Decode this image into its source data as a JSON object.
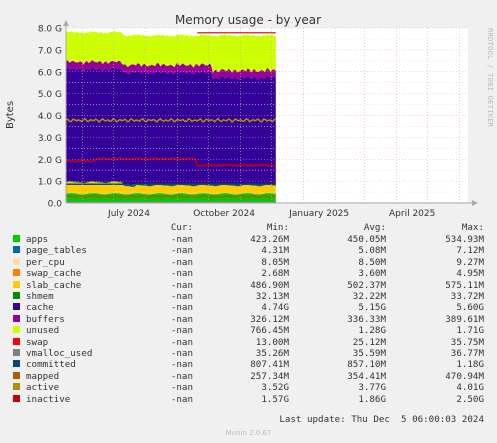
{
  "chart_data": {
    "type": "area",
    "title": "Memory usage - by year",
    "ylabel": "Bytes",
    "xlabel": "",
    "ylim": [
      0,
      8.0
    ],
    "y_unit": "G",
    "y_ticks": [
      "0.0",
      "1.0 G",
      "2.0 G",
      "3.0 G",
      "4.0 G",
      "5.0 G",
      "6.0 G",
      "7.0 G",
      "8.0 G"
    ],
    "x_ticks": [
      "July 2024",
      "October 2024",
      "January 2025",
      "April 2025"
    ],
    "x_range": [
      "2024-05-16",
      "2025-06-09"
    ],
    "grid": true,
    "stacked": true,
    "series": [
      {
        "name": "apps",
        "color": "#00cc00",
        "cur": "-nan",
        "min": "423.26M",
        "avg": "450.05M",
        "max": "534.93M"
      },
      {
        "name": "page_tables",
        "color": "#0066b3",
        "cur": "-nan",
        "min": "4.31M",
        "avg": "5.08M",
        "max": "7.12M"
      },
      {
        "name": "per_cpu",
        "color": "#ffe0a0",
        "cur": "-nan",
        "min": "8.05M",
        "avg": "8.50M",
        "max": "9.27M"
      },
      {
        "name": "swap_cache",
        "color": "#ff8000",
        "cur": "-nan",
        "min": "2.68M",
        "avg": "3.60M",
        "max": "4.95M"
      },
      {
        "name": "slab_cache",
        "color": "#ffcc00",
        "cur": "-nan",
        "min": "486.90M",
        "avg": "502.37M",
        "max": "575.11M"
      },
      {
        "name": "shmem",
        "color": "#008f00",
        "cur": "-nan",
        "min": "32.13M",
        "avg": "32.22M",
        "max": "33.72M"
      },
      {
        "name": "cache",
        "color": "#330099",
        "cur": "-nan",
        "min": "4.74G",
        "avg": "5.15G",
        "max": "5.60G"
      },
      {
        "name": "buffers",
        "color": "#990099",
        "cur": "-nan",
        "min": "326.12M",
        "avg": "336.33M",
        "max": "389.61M"
      },
      {
        "name": "unused",
        "color": "#ccff00",
        "cur": "-nan",
        "min": "766.45M",
        "avg": "1.28G",
        "max": "1.71G"
      },
      {
        "name": "swap",
        "color": "#ff0000",
        "cur": "-nan",
        "min": "13.00M",
        "avg": "25.12M",
        "max": "35.75M"
      },
      {
        "name": "vmalloc_used",
        "color": "#808080",
        "cur": "-nan",
        "min": "35.26M",
        "avg": "35.59M",
        "max": "36.77M"
      },
      {
        "name": "committed",
        "color": "#004c80",
        "cur": "-nan",
        "min": "807.41M",
        "avg": "857.10M",
        "max": "1.18G"
      },
      {
        "name": "mapped",
        "color": "#b35a00",
        "cur": "-nan",
        "min": "257.34M",
        "avg": "354.41M",
        "max": "470.94M"
      },
      {
        "name": "active",
        "color": "#b38f00",
        "cur": "-nan",
        "min": "3.52G",
        "avg": "3.77G",
        "max": "4.01G"
      },
      {
        "name": "inactive",
        "color": "#cc0000",
        "cur": "-nan",
        "min": "1.57G",
        "avg": "1.86G",
        "max": "2.50G"
      }
    ]
  },
  "legend_header": {
    "cur": "Cur:",
    "min": "Min:",
    "avg": "Avg:",
    "max": "Max:"
  },
  "last_update": "Last update: Thu Dec  5 06:00:03 2024",
  "side_label": "RRDTOOL / TOBI OETIKER",
  "version": "Munin 2.0.67"
}
